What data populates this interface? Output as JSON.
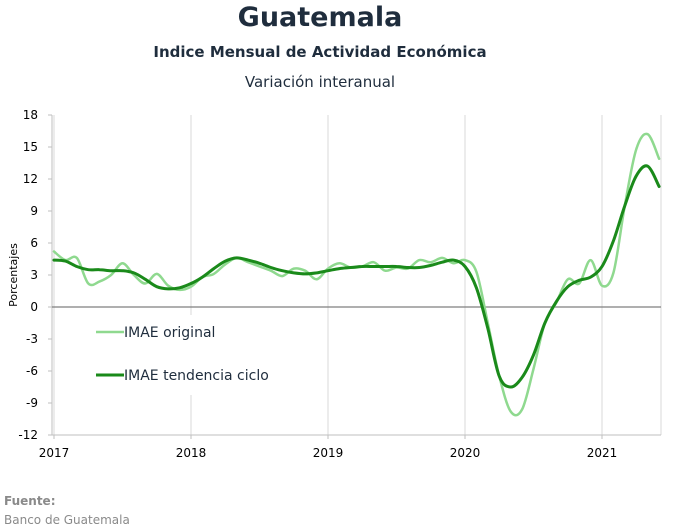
{
  "header": {
    "title": "Guatemala",
    "subtitle": "Indice Mensual de  Actividad Económica",
    "subtitle2": "Variación interanual"
  },
  "source": {
    "label": "Fuente:",
    "text": "Banco de Guatemala"
  },
  "chart_data": {
    "type": "line",
    "title": "Guatemala",
    "subtitle": "Indice Mensual de  Actividad Económica — Variación interanual",
    "xlabel": "",
    "ylabel": "Porcentajes",
    "x_ticks": [
      "2017",
      "2018",
      "2019",
      "2020",
      "2021"
    ],
    "y_ticks": [
      18,
      15,
      12,
      9,
      6,
      3,
      0,
      -3,
      -6,
      -9,
      -12
    ],
    "ylim": [
      -12,
      18
    ],
    "xlim": [
      "2017-01",
      "2021-07"
    ],
    "grid": "vertical at year ticks",
    "legend_position": "lower-left inside plot",
    "x": [
      "2017-01",
      "2017-02",
      "2017-03",
      "2017-04",
      "2017-05",
      "2017-06",
      "2017-07",
      "2017-08",
      "2017-09",
      "2017-10",
      "2017-11",
      "2017-12",
      "2018-01",
      "2018-02",
      "2018-03",
      "2018-04",
      "2018-05",
      "2018-06",
      "2018-07",
      "2018-08",
      "2018-09",
      "2018-10",
      "2018-11",
      "2018-12",
      "2019-01",
      "2019-02",
      "2019-03",
      "2019-04",
      "2019-05",
      "2019-06",
      "2019-07",
      "2019-08",
      "2019-09",
      "2019-10",
      "2019-11",
      "2019-12",
      "2020-01",
      "2020-02",
      "2020-03",
      "2020-04",
      "2020-05",
      "2020-06",
      "2020-07",
      "2020-08",
      "2020-09",
      "2020-10",
      "2020-11",
      "2020-12",
      "2021-01",
      "2021-02",
      "2021-03",
      "2021-04",
      "2021-05",
      "2021-06"
    ],
    "series": [
      {
        "name": "IMAE original",
        "color": "#8fd98f",
        "values": [
          5.2,
          4.4,
          4.6,
          2.2,
          2.4,
          3.0,
          4.1,
          3.0,
          2.2,
          3.1,
          2.0,
          1.6,
          1.9,
          2.8,
          3.1,
          4.0,
          4.6,
          4.2,
          3.8,
          3.4,
          2.9,
          3.6,
          3.4,
          2.6,
          3.6,
          4.1,
          3.7,
          3.8,
          4.2,
          3.4,
          3.7,
          3.6,
          4.4,
          4.2,
          4.6,
          4.1,
          4.4,
          3.3,
          -1.5,
          -6.5,
          -9.8,
          -9.6,
          -5.8,
          -1.5,
          0.4,
          2.6,
          2.2,
          4.4,
          2.0,
          3.2,
          9.5,
          14.8,
          16.2,
          13.9
        ]
      },
      {
        "name": "IMAE tendencia ciclo",
        "color": "#1a8a1a",
        "values": [
          4.4,
          4.3,
          3.8,
          3.5,
          3.5,
          3.4,
          3.4,
          3.2,
          2.6,
          1.9,
          1.7,
          1.8,
          2.2,
          2.8,
          3.6,
          4.3,
          4.6,
          4.4,
          4.1,
          3.7,
          3.4,
          3.2,
          3.1,
          3.2,
          3.4,
          3.6,
          3.7,
          3.8,
          3.8,
          3.8,
          3.8,
          3.7,
          3.7,
          3.9,
          4.2,
          4.4,
          3.8,
          1.8,
          -2.0,
          -6.5,
          -7.5,
          -6.6,
          -4.5,
          -1.5,
          0.5,
          1.9,
          2.5,
          2.8,
          3.8,
          6.2,
          9.5,
          12.3,
          13.2,
          11.3
        ]
      }
    ]
  }
}
